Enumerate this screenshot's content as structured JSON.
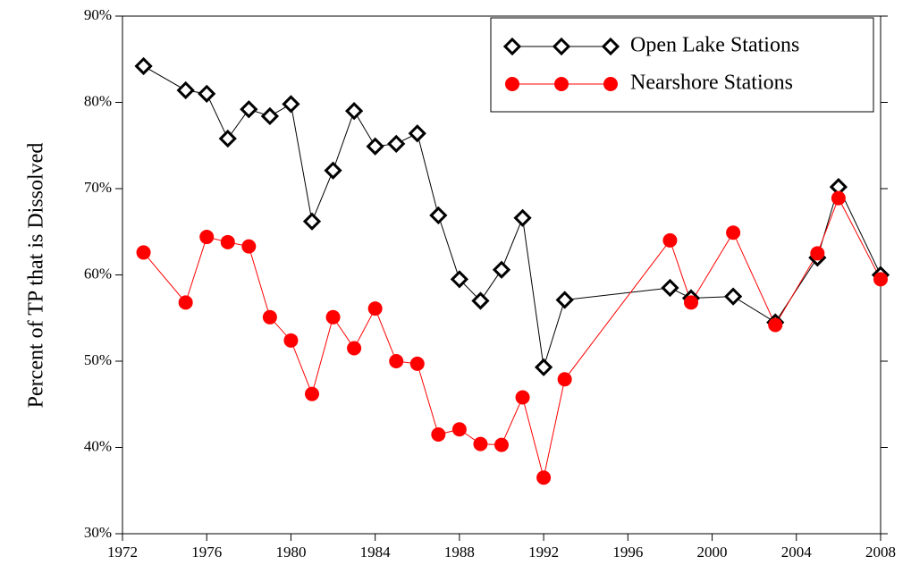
{
  "chart_data": {
    "type": "line",
    "y_label": "Percent of TP that is Dissolved",
    "x": [
      1973,
      1975,
      1976,
      1977,
      1978,
      1979,
      1980,
      1981,
      1982,
      1983,
      1984,
      1985,
      1986,
      1987,
      1988,
      1989,
      1990,
      1991,
      1992,
      1993,
      1998,
      1999,
      2001,
      2003,
      2005,
      2006,
      2008
    ],
    "series": [
      {
        "name": "Open Lake Stations",
        "color": "#000000",
        "marker": "diamond",
        "values": [
          84.2,
          81.4,
          81.0,
          75.8,
          79.2,
          78.4,
          79.8,
          66.2,
          72.1,
          79.0,
          74.9,
          75.2,
          76.4,
          66.9,
          59.5,
          57.0,
          60.6,
          66.6,
          49.3,
          57.1,
          58.5,
          57.3,
          57.5,
          54.5,
          62.0,
          70.2,
          60.0
        ]
      },
      {
        "name": "Nearshore Stations",
        "color": "#ff0000",
        "marker": "circle",
        "values": [
          62.6,
          56.8,
          64.4,
          63.8,
          63.3,
          55.1,
          52.4,
          46.2,
          55.1,
          51.5,
          56.1,
          50.0,
          49.7,
          41.5,
          42.1,
          40.4,
          40.3,
          45.8,
          36.5,
          47.9,
          64.0,
          56.8,
          64.9,
          54.2,
          62.5,
          68.9,
          59.5
        ]
      }
    ],
    "xlim": [
      1972,
      2008
    ],
    "xticks": [
      1972,
      1976,
      1980,
      1984,
      1988,
      1992,
      1996,
      2000,
      2004,
      2008
    ],
    "ylim": [
      30,
      90
    ],
    "yticks": [
      {
        "value": 30,
        "label": "30%"
      },
      {
        "value": 40,
        "label": "40%"
      },
      {
        "value": 50,
        "label": "50%"
      },
      {
        "value": 60,
        "label": "60%"
      },
      {
        "value": 70,
        "label": "70%"
      },
      {
        "value": 80,
        "label": "80%"
      },
      {
        "value": 90,
        "label": "90%"
      }
    ],
    "legend": "upper right",
    "grid": false
  }
}
